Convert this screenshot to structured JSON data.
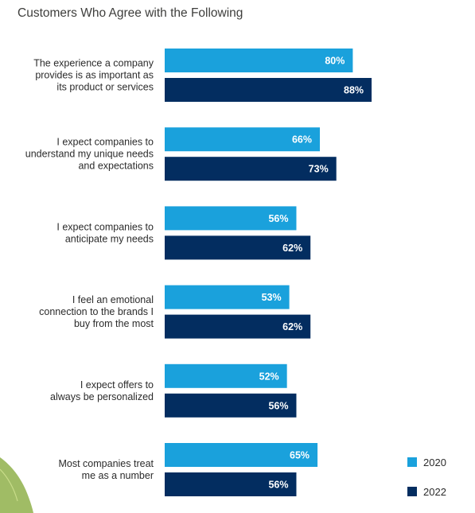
{
  "chart_data": {
    "type": "bar",
    "orientation": "horizontal",
    "title": "Customers Who Agree with the Following",
    "categories": [
      [
        "The experience a company",
        "provides is as important as",
        "its product or services"
      ],
      [
        "I expect companies to",
        "understand my unique needs",
        "and expectations"
      ],
      [
        "I expect companies to",
        "anticipate my needs"
      ],
      [
        "I feel an emotional",
        "connection to the brands I",
        "buy from the most"
      ],
      [
        "I expect offers to",
        "always be personalized"
      ],
      [
        "Most companies treat",
        "me as a number"
      ]
    ],
    "series": [
      {
        "name": "2020",
        "values": [
          80,
          66,
          56,
          53,
          52,
          65
        ],
        "color": "#1aa1dc"
      },
      {
        "name": "2022",
        "values": [
          88,
          73,
          62,
          62,
          56,
          56
        ],
        "color": "#032d60"
      }
    ],
    "value_suffix": "%",
    "xlim": [
      0,
      100
    ],
    "grid": false,
    "legend_position": "bottom-right",
    "colors": {
      "decoration_leaf": "#8fb04a",
      "title_text": "#3e3e3c"
    }
  }
}
